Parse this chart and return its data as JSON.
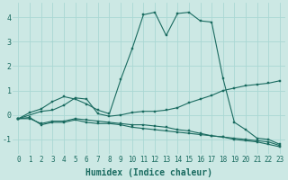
{
  "xlabel": "Humidex (Indice chaleur)",
  "bg_color": "#cce8e4",
  "line_color": "#1a6b60",
  "grid_color": "#aad8d4",
  "xlim": [
    -0.5,
    23.5
  ],
  "ylim": [
    -1.6,
    4.6
  ],
  "xticks": [
    0,
    1,
    2,
    3,
    4,
    5,
    6,
    7,
    8,
    9,
    10,
    11,
    12,
    13,
    14,
    15,
    16,
    17,
    18,
    19,
    20,
    21,
    22,
    23
  ],
  "yticks": [
    -1,
    0,
    1,
    2,
    3,
    4
  ],
  "line1_x": [
    0,
    1,
    2,
    3,
    4,
    5,
    6,
    7,
    8,
    9,
    10,
    11,
    12,
    13,
    14,
    15,
    16,
    17,
    18,
    19,
    20,
    21,
    22,
    23
  ],
  "line1_y": [
    -0.15,
    0.1,
    0.25,
    0.55,
    0.75,
    0.65,
    0.45,
    0.2,
    0.05,
    1.45,
    2.7,
    4.1,
    4.2,
    3.25,
    4.15,
    4.2,
    3.85,
    3.8,
    1.5,
    -0.3,
    -0.6,
    -0.95,
    -1.0,
    -1.2
  ],
  "line2_x": [
    0,
    2,
    3,
    4,
    5,
    6,
    7,
    8,
    9,
    10,
    11,
    12,
    13,
    14,
    15,
    16,
    17,
    18,
    19,
    20,
    21,
    22,
    23
  ],
  "line2_y": [
    -0.15,
    0.15,
    0.2,
    0.4,
    0.7,
    0.65,
    0.05,
    -0.05,
    0.0,
    0.1,
    0.15,
    0.15,
    0.2,
    0.3,
    0.5,
    0.65,
    0.8,
    1.0,
    1.1,
    1.2,
    1.25,
    1.3,
    1.4
  ],
  "line3_x": [
    0,
    1,
    2,
    3,
    4,
    5,
    6,
    7,
    8,
    9,
    10,
    11,
    12,
    13,
    14,
    15,
    16,
    17,
    18,
    19,
    20,
    21,
    22,
    23
  ],
  "line3_y": [
    -0.15,
    -0.15,
    -0.35,
    -0.25,
    -0.25,
    -0.15,
    -0.2,
    -0.25,
    -0.3,
    -0.35,
    -0.4,
    -0.4,
    -0.45,
    -0.5,
    -0.6,
    -0.65,
    -0.75,
    -0.85,
    -0.9,
    -0.95,
    -1.0,
    -1.05,
    -1.1,
    -1.25
  ],
  "line4_x": [
    0,
    1,
    2,
    3,
    4,
    5,
    6,
    7,
    8,
    9,
    10,
    11,
    12,
    13,
    14,
    15,
    16,
    17,
    18,
    19,
    20,
    21,
    22,
    23
  ],
  "line4_y": [
    -0.15,
    -0.1,
    -0.4,
    -0.3,
    -0.3,
    -0.2,
    -0.3,
    -0.35,
    -0.35,
    -0.4,
    -0.5,
    -0.55,
    -0.6,
    -0.65,
    -0.7,
    -0.75,
    -0.8,
    -0.85,
    -0.9,
    -1.0,
    -1.05,
    -1.1,
    -1.2,
    -1.3
  ],
  "fontsize_xlabel": 7,
  "fontsize_ticks": 5.5,
  "markersize": 2.0
}
